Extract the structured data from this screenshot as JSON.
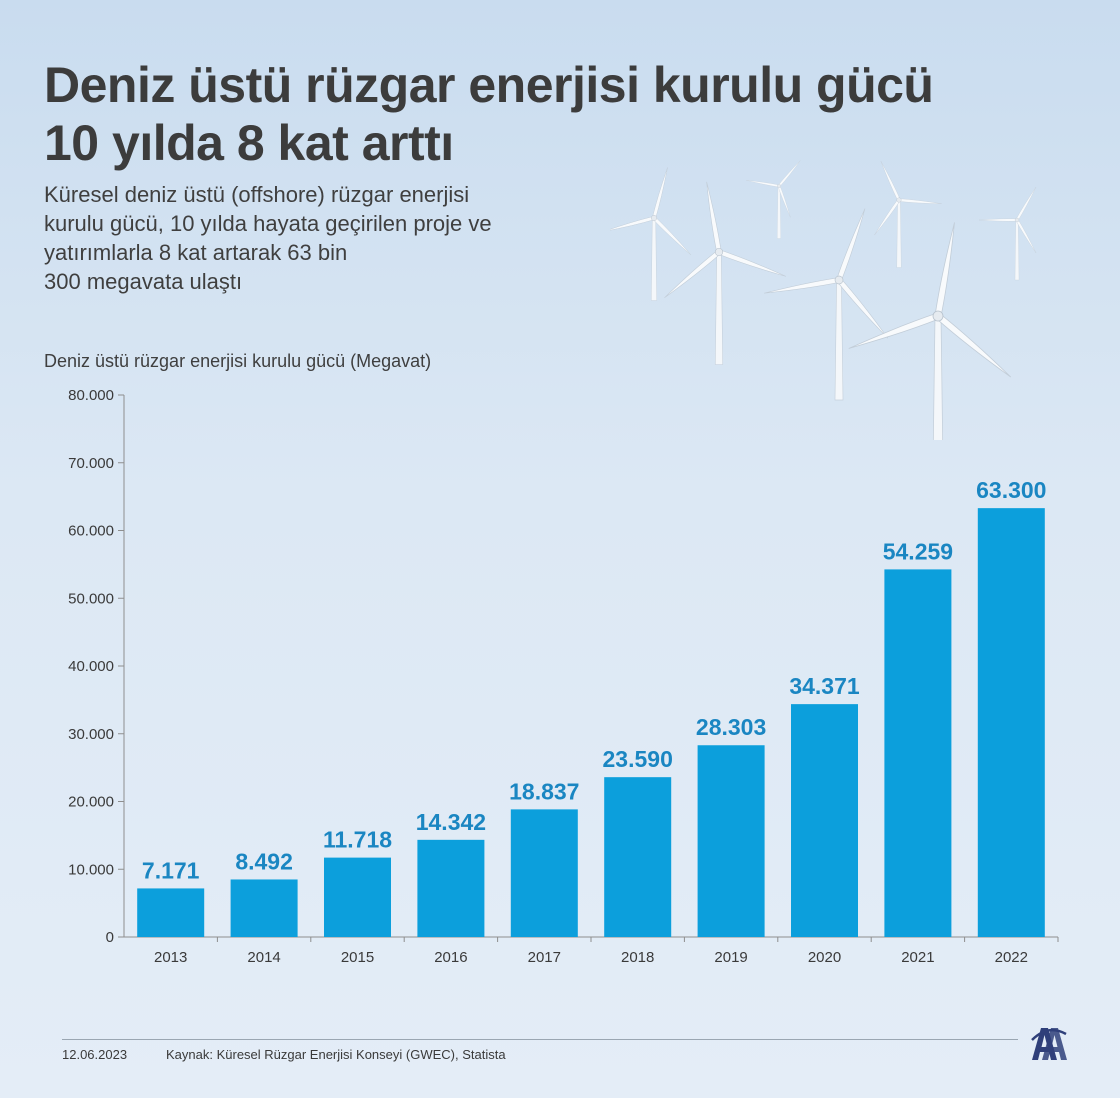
{
  "header": {
    "title_line1": "Deniz üstü rüzgar enerjisi kurulu gücü",
    "title_line2": "10 yılda 8 kat arttı",
    "subtitle_lines": [
      "Küresel deniz üstü (offshore) rüzgar enerjisi",
      "kurulu gücü, 10 yılda hayata geçirilen proje ve",
      "yatırımlarla 8 kat artarak 63 bin",
      "300 megavata ulaştı"
    ]
  },
  "footer": {
    "date": "12.06.2023",
    "source": "Kaynak: Küresel Rüzgar Enerjisi Konseyi (GWEC), Statista",
    "logo_text": "AA"
  },
  "colors": {
    "bar": "#0c9fdc",
    "value_label": "#1a86c2",
    "axis": "#8e8e8e"
  },
  "chart_data": {
    "type": "bar",
    "ylabel": "Deniz üstü rüzgar enerjisi kurulu gücü (Megavat)",
    "categories": [
      "2013",
      "2014",
      "2015",
      "2016",
      "2017",
      "2018",
      "2019",
      "2020",
      "2021",
      "2022"
    ],
    "values": [
      7171,
      8492,
      11718,
      14342,
      18837,
      23590,
      28303,
      34371,
      54259,
      63300
    ],
    "value_labels": [
      "7.171",
      "8.492",
      "11.718",
      "14.342",
      "18.837",
      "23.590",
      "28.303",
      "34.371",
      "54.259",
      "63.300"
    ],
    "ylim": [
      0,
      80000
    ],
    "yticks": [
      0,
      10000,
      20000,
      30000,
      40000,
      50000,
      60000,
      70000,
      80000
    ],
    "ytick_labels": [
      "0",
      "10.000",
      "20.000",
      "30.000",
      "40.000",
      "50.000",
      "60.000",
      "70.000",
      "80.000"
    ],
    "grid": false,
    "legend": "none"
  }
}
